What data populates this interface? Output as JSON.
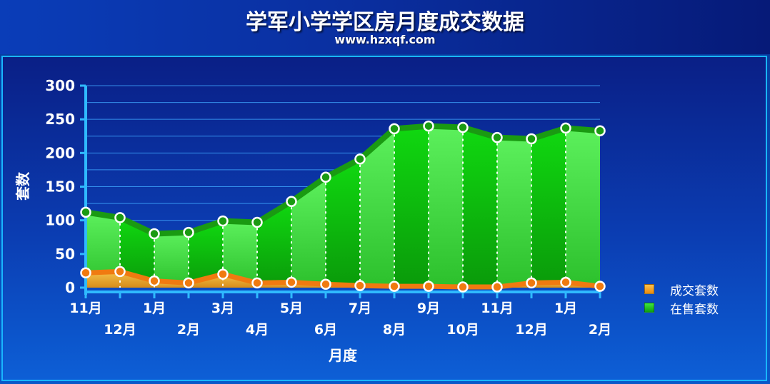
{
  "title": "学军小学学区房月度成交数据",
  "subtitle": "www.hzxqf.com",
  "colors": {
    "sold": "#f5a623",
    "sold_line": "#f07a10",
    "listed": "#22d422",
    "listed_line": "#1a9a12",
    "grid": "#3fa7ff"
  },
  "chart_data": {
    "type": "area",
    "xlabel": "月度",
    "ylabel": "套数",
    "ylim": [
      0,
      300
    ],
    "yticks": [
      0,
      50,
      100,
      150,
      200,
      250,
      300
    ],
    "categories": [
      "11月",
      "12月",
      "1月",
      "2月",
      "3月",
      "4月",
      "5月",
      "6月",
      "7月",
      "8月",
      "9月",
      "10月",
      "11月",
      "12月",
      "1月",
      "2月"
    ],
    "series": [
      {
        "name": "在售套数",
        "values": [
          112,
          104,
          80,
          82,
          99,
          97,
          128,
          164,
          191,
          236,
          240,
          238,
          223,
          221,
          237,
          233
        ]
      },
      {
        "name": "成交套数",
        "values": [
          22,
          24,
          10,
          7,
          20,
          7,
          8,
          5,
          3,
          2,
          2,
          1,
          1,
          7,
          8,
          2
        ]
      }
    ],
    "grid": true,
    "legend": "bottom-right"
  }
}
